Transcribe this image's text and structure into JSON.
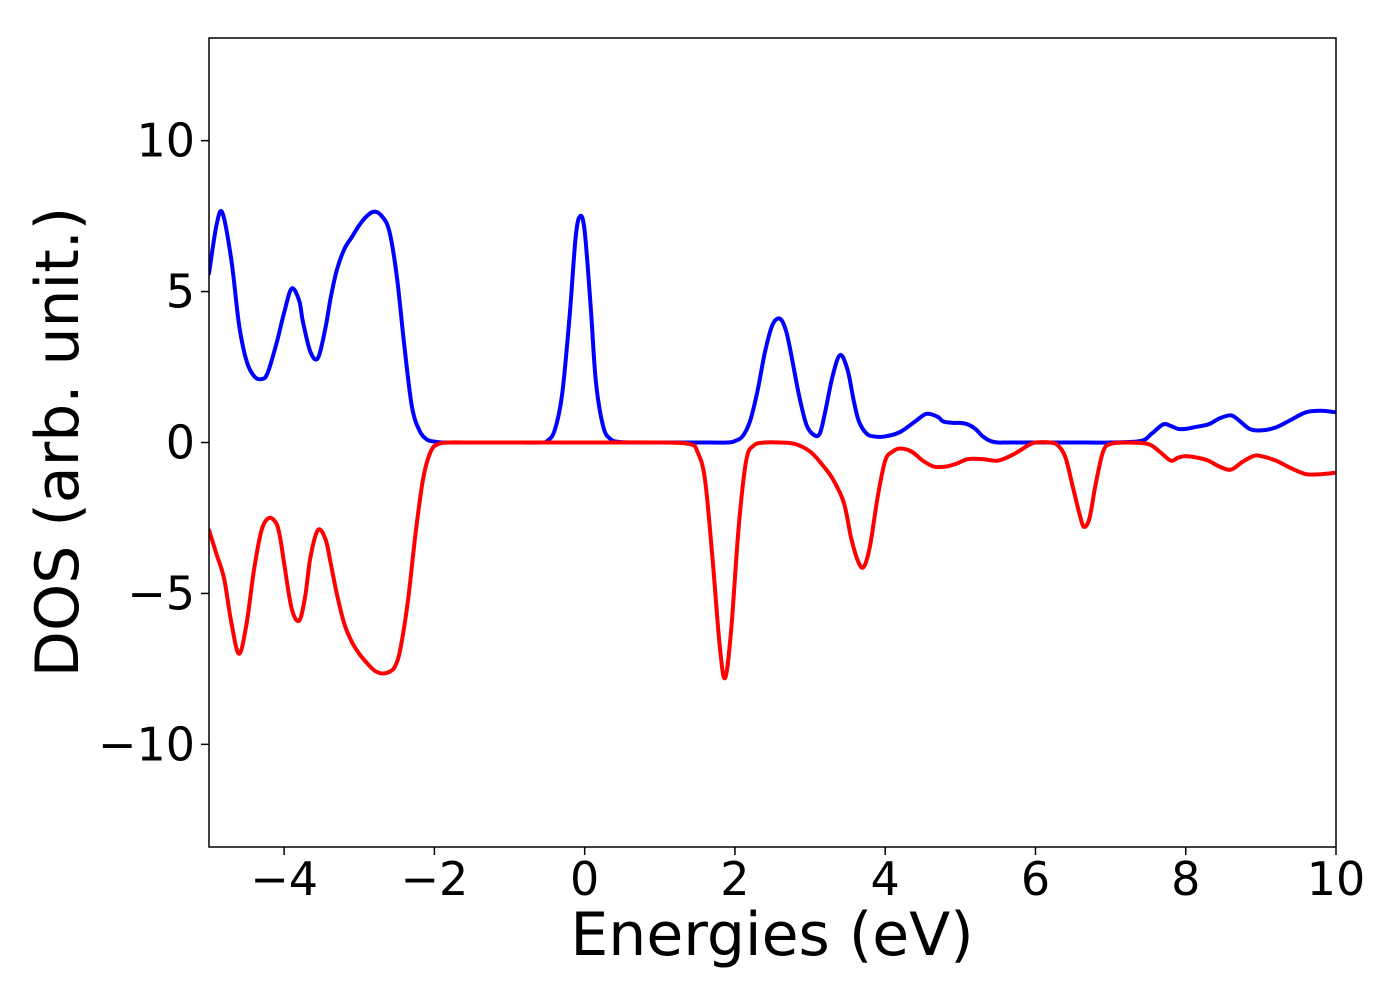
{
  "chart_data": {
    "type": "line",
    "title": "",
    "xlabel": "Energies (eV)",
    "ylabel": "DOS (arb. unit.)",
    "xlim": [
      -5,
      10
    ],
    "ylim": [
      -13.4,
      13.4
    ],
    "grid": false,
    "legend": "none",
    "x_ticks": [
      {
        "value": -4,
        "label": "−4"
      },
      {
        "value": -2,
        "label": "−2"
      },
      {
        "value": 0,
        "label": "0"
      },
      {
        "value": 2,
        "label": "2"
      },
      {
        "value": 4,
        "label": "4"
      },
      {
        "value": 6,
        "label": "6"
      },
      {
        "value": 8,
        "label": "8"
      },
      {
        "value": 10,
        "label": "10"
      }
    ],
    "y_ticks": [
      {
        "value": -10,
        "label": "−10"
      },
      {
        "value": -5,
        "label": "−5"
      },
      {
        "value": 0,
        "label": "0"
      },
      {
        "value": 5,
        "label": "5"
      },
      {
        "value": 10,
        "label": "10"
      }
    ],
    "series": [
      {
        "color": "#0000ff",
        "x": [
          -5.0,
          -4.9,
          -4.82,
          -4.7,
          -4.6,
          -4.5,
          -4.4,
          -4.3,
          -4.22,
          -4.1,
          -4.0,
          -3.9,
          -3.8,
          -3.75,
          -3.65,
          -3.55,
          -3.45,
          -3.38,
          -3.3,
          -3.2,
          -3.1,
          -3.0,
          -2.9,
          -2.8,
          -2.7,
          -2.6,
          -2.5,
          -2.4,
          -2.3,
          -2.2,
          -2.1,
          -2.0,
          -1.9,
          -1.8,
          -1.7,
          -1.5,
          -1.0,
          -0.6,
          -0.5,
          -0.4,
          -0.3,
          -0.2,
          -0.12,
          -0.06,
          0.0,
          0.08,
          0.15,
          0.25,
          0.35,
          0.45,
          0.6,
          1.0,
          1.5,
          1.9,
          2.0,
          2.1,
          2.2,
          2.3,
          2.4,
          2.5,
          2.6,
          2.68,
          2.75,
          2.85,
          2.95,
          3.05,
          3.13,
          3.2,
          3.3,
          3.4,
          3.5,
          3.58,
          3.65,
          3.75,
          3.85,
          4.0,
          4.2,
          4.4,
          4.55,
          4.7,
          4.77,
          4.9,
          5.0,
          5.1,
          5.2,
          5.3,
          5.4,
          5.5,
          5.6,
          5.7,
          5.8,
          6.0,
          6.5,
          7.0,
          7.4,
          7.55,
          7.7,
          7.8,
          7.9,
          8.0,
          8.1,
          8.3,
          8.45,
          8.6,
          8.7,
          8.85,
          9.0,
          9.2,
          9.4,
          9.6,
          9.8,
          10.0
        ],
        "y": [
          5.6,
          7.2,
          7.6,
          6.0,
          3.9,
          2.7,
          2.2,
          2.1,
          2.3,
          3.3,
          4.3,
          5.1,
          4.7,
          4.0,
          3.0,
          2.8,
          3.8,
          4.8,
          5.7,
          6.4,
          6.8,
          7.2,
          7.5,
          7.65,
          7.5,
          7.0,
          5.5,
          3.2,
          1.2,
          0.4,
          0.1,
          0.03,
          0.0,
          0.0,
          0.0,
          0.0,
          0.0,
          0.0,
          0.05,
          0.4,
          1.6,
          4.2,
          6.8,
          7.5,
          7.0,
          4.5,
          2.0,
          0.5,
          0.1,
          0.02,
          0.0,
          0.0,
          0.0,
          0.0,
          0.05,
          0.2,
          0.7,
          1.7,
          3.0,
          3.9,
          4.1,
          3.7,
          2.9,
          1.6,
          0.6,
          0.25,
          0.3,
          1.0,
          2.2,
          2.9,
          2.4,
          1.4,
          0.7,
          0.3,
          0.2,
          0.2,
          0.35,
          0.7,
          0.95,
          0.85,
          0.7,
          0.65,
          0.65,
          0.6,
          0.45,
          0.2,
          0.05,
          0.0,
          0.0,
          0.0,
          0.0,
          0.0,
          0.0,
          0.0,
          0.05,
          0.3,
          0.6,
          0.55,
          0.45,
          0.45,
          0.5,
          0.6,
          0.8,
          0.9,
          0.75,
          0.45,
          0.4,
          0.5,
          0.75,
          1.0,
          1.05,
          1.0
        ]
      },
      {
        "color": "#ff0000",
        "x": [
          -5.0,
          -4.9,
          -4.8,
          -4.7,
          -4.6,
          -4.5,
          -4.4,
          -4.3,
          -4.2,
          -4.1,
          -4.05,
          -4.0,
          -3.9,
          -3.8,
          -3.72,
          -3.65,
          -3.55,
          -3.45,
          -3.38,
          -3.3,
          -3.2,
          -3.1,
          -3.0,
          -2.9,
          -2.8,
          -2.7,
          -2.6,
          -2.52,
          -2.45,
          -2.35,
          -2.25,
          -2.15,
          -2.05,
          -1.95,
          -1.8,
          -1.6,
          -1.0,
          0.0,
          1.0,
          1.4,
          1.5,
          1.6,
          1.7,
          1.8,
          1.87,
          1.95,
          2.05,
          2.15,
          2.25,
          2.4,
          2.6,
          2.8,
          3.0,
          3.15,
          3.3,
          3.45,
          3.55,
          3.65,
          3.72,
          3.8,
          3.9,
          4.0,
          4.1,
          4.2,
          4.35,
          4.5,
          4.65,
          4.8,
          4.95,
          5.1,
          5.3,
          5.5,
          5.7,
          5.9,
          6.0,
          6.2,
          6.3,
          6.4,
          6.5,
          6.6,
          6.65,
          6.72,
          6.8,
          6.9,
          7.0,
          7.2,
          7.5,
          7.65,
          7.8,
          7.9,
          8.0,
          8.15,
          8.3,
          8.45,
          8.6,
          8.75,
          8.9,
          9.0,
          9.2,
          9.4,
          9.6,
          9.8,
          10.0
        ],
        "y": [
          -2.9,
          -3.7,
          -4.5,
          -6.0,
          -7.0,
          -6.0,
          -4.2,
          -2.9,
          -2.5,
          -2.7,
          -3.2,
          -4.0,
          -5.5,
          -5.9,
          -5.1,
          -3.8,
          -2.9,
          -3.2,
          -4.0,
          -5.0,
          -6.0,
          -6.6,
          -7.0,
          -7.3,
          -7.55,
          -7.65,
          -7.6,
          -7.4,
          -6.8,
          -5.2,
          -3.0,
          -1.2,
          -0.3,
          -0.05,
          0.0,
          0.0,
          0.0,
          0.0,
          0.0,
          -0.05,
          -0.3,
          -1.2,
          -3.8,
          -6.8,
          -7.8,
          -6.2,
          -2.8,
          -0.6,
          -0.1,
          0.0,
          0.0,
          -0.05,
          -0.3,
          -0.7,
          -1.2,
          -2.0,
          -3.2,
          -4.0,
          -4.1,
          -3.4,
          -1.8,
          -0.6,
          -0.3,
          -0.2,
          -0.3,
          -0.6,
          -0.8,
          -0.8,
          -0.7,
          -0.55,
          -0.55,
          -0.6,
          -0.4,
          -0.1,
          0.0,
          0.0,
          -0.1,
          -0.5,
          -1.5,
          -2.5,
          -2.8,
          -2.5,
          -1.4,
          -0.3,
          -0.05,
          0.0,
          -0.05,
          -0.3,
          -0.6,
          -0.5,
          -0.45,
          -0.5,
          -0.6,
          -0.8,
          -0.9,
          -0.65,
          -0.45,
          -0.45,
          -0.6,
          -0.85,
          -1.05,
          -1.05,
          -1.0
        ]
      }
    ]
  }
}
